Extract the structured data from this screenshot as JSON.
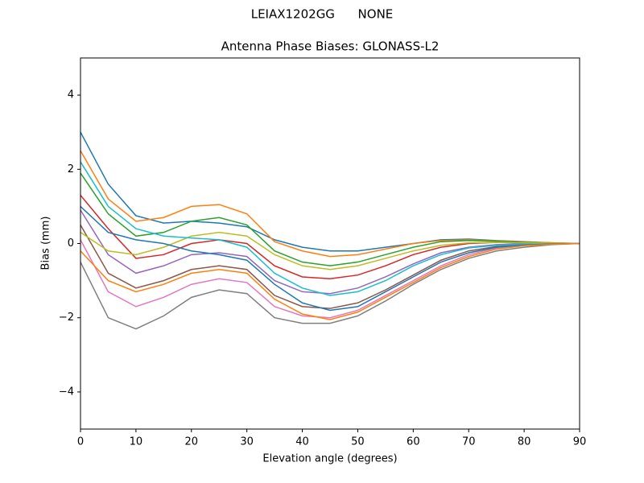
{
  "chart_data": {
    "type": "line",
    "suptitle": "LEIAX1202GG      NONE",
    "title": "Antenna Phase Biases: GLONASS-L2",
    "xlabel": "Elevation angle (degrees)",
    "ylabel": "Bias (mm)",
    "x": [
      0,
      5,
      10,
      15,
      20,
      25,
      30,
      35,
      40,
      45,
      50,
      55,
      60,
      65,
      70,
      75,
      80,
      85,
      90
    ],
    "xlim": [
      0,
      90
    ],
    "xticks": [
      0,
      10,
      20,
      30,
      40,
      50,
      60,
      70,
      80,
      90
    ],
    "ylim": [
      -5,
      5
    ],
    "yticks": [
      {
        "value": -4,
        "label": "−4"
      },
      {
        "value": -2,
        "label": "−2"
      },
      0,
      2,
      4
    ],
    "grid": false,
    "series": [
      {
        "color": "#1f77b4",
        "values": [
          3.0,
          1.6,
          0.75,
          0.55,
          0.6,
          0.55,
          0.45,
          0.1,
          -0.1,
          -0.2,
          -0.2,
          -0.1,
          0.0,
          0.1,
          0.12,
          0.08,
          0.05,
          0.02,
          0
        ]
      },
      {
        "color": "#ff7f0e",
        "values": [
          2.5,
          1.2,
          0.6,
          0.7,
          1.0,
          1.05,
          0.8,
          0.05,
          -0.2,
          -0.35,
          -0.3,
          -0.15,
          0.0,
          0.08,
          0.1,
          0.07,
          0.04,
          0.02,
          0
        ]
      },
      {
        "color": "#2ca02c",
        "values": [
          1.9,
          0.8,
          0.2,
          0.3,
          0.6,
          0.7,
          0.5,
          -0.2,
          -0.5,
          -0.6,
          -0.5,
          -0.3,
          -0.1,
          0.05,
          0.08,
          0.06,
          0.03,
          0.01,
          0
        ]
      },
      {
        "color": "#d62728",
        "values": [
          1.3,
          0.4,
          -0.4,
          -0.3,
          0.0,
          0.1,
          0.0,
          -0.6,
          -0.9,
          -0.95,
          -0.85,
          -0.6,
          -0.3,
          -0.1,
          0.0,
          0.03,
          0.02,
          0.01,
          0
        ]
      },
      {
        "color": "#9467bd",
        "values": [
          0.9,
          -0.3,
          -0.8,
          -0.6,
          -0.3,
          -0.25,
          -0.35,
          -1.0,
          -1.3,
          -1.35,
          -1.2,
          -0.9,
          -0.55,
          -0.25,
          -0.1,
          -0.03,
          0.0,
          0.0,
          0
        ]
      },
      {
        "color": "#8c564b",
        "values": [
          0.5,
          -0.8,
          -1.2,
          -1.0,
          -0.7,
          -0.6,
          -0.7,
          -1.4,
          -1.7,
          -1.75,
          -1.6,
          -1.25,
          -0.85,
          -0.45,
          -0.2,
          -0.08,
          -0.03,
          -0.01,
          0
        ]
      },
      {
        "color": "#e377c2",
        "values": [
          0.1,
          -1.3,
          -1.7,
          -1.45,
          -1.1,
          -0.95,
          -1.05,
          -1.7,
          -1.95,
          -2.0,
          -1.8,
          -1.4,
          -1.0,
          -0.6,
          -0.3,
          -0.12,
          -0.05,
          -0.02,
          0
        ]
      },
      {
        "color": "#7f7f7f",
        "values": [
          -0.5,
          -2.0,
          -2.3,
          -1.95,
          -1.45,
          -1.25,
          -1.35,
          -2.0,
          -2.15,
          -2.15,
          -1.95,
          -1.55,
          -1.1,
          -0.7,
          -0.4,
          -0.2,
          -0.1,
          -0.03,
          0
        ]
      },
      {
        "color": "#bcbd22",
        "values": [
          0.3,
          -0.2,
          -0.3,
          -0.1,
          0.2,
          0.3,
          0.2,
          -0.3,
          -0.6,
          -0.7,
          -0.6,
          -0.4,
          -0.2,
          -0.05,
          0.02,
          0.03,
          0.02,
          0.01,
          0
        ]
      },
      {
        "color": "#17becf",
        "values": [
          2.2,
          1.0,
          0.4,
          0.2,
          0.15,
          0.1,
          -0.1,
          -0.8,
          -1.2,
          -1.4,
          -1.3,
          -1.0,
          -0.6,
          -0.3,
          -0.12,
          -0.05,
          -0.02,
          -0.01,
          0
        ]
      },
      {
        "color": "#1f77b4",
        "values": [
          1.0,
          0.3,
          0.1,
          0.0,
          -0.2,
          -0.3,
          -0.45,
          -1.1,
          -1.6,
          -1.8,
          -1.7,
          -1.3,
          -0.9,
          -0.5,
          -0.25,
          -0.1,
          -0.04,
          -0.01,
          0
        ]
      },
      {
        "color": "#ff7f0e",
        "values": [
          -0.2,
          -1.0,
          -1.3,
          -1.1,
          -0.8,
          -0.7,
          -0.8,
          -1.5,
          -1.9,
          -2.05,
          -1.85,
          -1.45,
          -1.05,
          -0.65,
          -0.35,
          -0.15,
          -0.06,
          -0.02,
          0
        ]
      }
    ]
  }
}
